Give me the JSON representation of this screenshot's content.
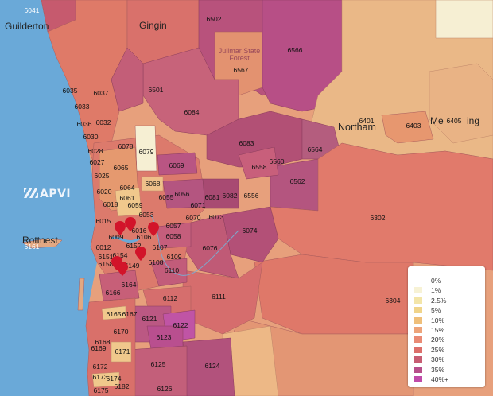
{
  "map": {
    "towns": [
      {
        "key": "guilderton",
        "name": "Guilderton"
      },
      {
        "key": "gingin",
        "name": "Gingin"
      },
      {
        "key": "julimar",
        "name": "Julimar State Forest"
      },
      {
        "key": "northam",
        "name": "Northam"
      },
      {
        "key": "meckering",
        "name": "Me"
      },
      {
        "key": "meckering2",
        "name": "ing"
      },
      {
        "key": "rottnest",
        "name": "Rottnest"
      }
    ],
    "brand": "APVI",
    "postcodes": [
      "6041",
      "6502",
      "6566",
      "6567",
      "6501",
      "6035",
      "6037",
      "6033",
      "6036",
      "6032",
      "6030",
      "6084",
      "6401",
      "6403",
      "6405",
      "6083",
      "6564",
      "6028",
      "6027",
      "6078",
      "6079",
      "6065",
      "6069",
      "6558",
      "6560",
      "6025",
      "6064",
      "6068",
      "6562",
      "6020",
      "6061",
      "6055",
      "6056",
      "6081",
      "6082",
      "6556",
      "6018",
      "6059",
      "6071",
      "6053",
      "6070",
      "6073",
      "6015",
      "6016",
      "6057",
      "6302",
      "6009",
      "6106",
      "6058",
      "6074",
      "6161",
      "6012",
      "6152",
      "6107",
      "6076",
      "6158",
      "6154",
      "6109",
      "6151",
      "6149",
      "6108",
      "6110",
      "6164",
      "6111",
      "6166",
      "6112",
      "6165",
      "6121",
      "6304",
      "6170",
      "6167",
      "6122",
      "6168",
      "6123",
      "6169",
      "6171",
      "6124",
      "6172",
      "6125",
      "6173",
      "6174",
      "6126",
      "6175",
      "6182"
    ],
    "colors": {
      "ocean": "#6aa9d8",
      "land": "#e9a37a",
      "border": "#a05a5a"
    }
  },
  "legend": {
    "items": [
      {
        "label": "0%",
        "color": "#ffffff"
      },
      {
        "label": "1%",
        "color": "#f7f2d5"
      },
      {
        "label": "2.5%",
        "color": "#f3e5a8"
      },
      {
        "label": "5%",
        "color": "#f0d48a"
      },
      {
        "label": "10%",
        "color": "#efbf7a"
      },
      {
        "label": "15%",
        "color": "#eda47a"
      },
      {
        "label": "20%",
        "color": "#e98a74"
      },
      {
        "label": "25%",
        "color": "#dc6f6a"
      },
      {
        "label": "30%",
        "color": "#c75d72"
      },
      {
        "label": "35%",
        "color": "#b74f8a"
      },
      {
        "label": "40%+",
        "color": "#c04ba8"
      }
    ]
  }
}
